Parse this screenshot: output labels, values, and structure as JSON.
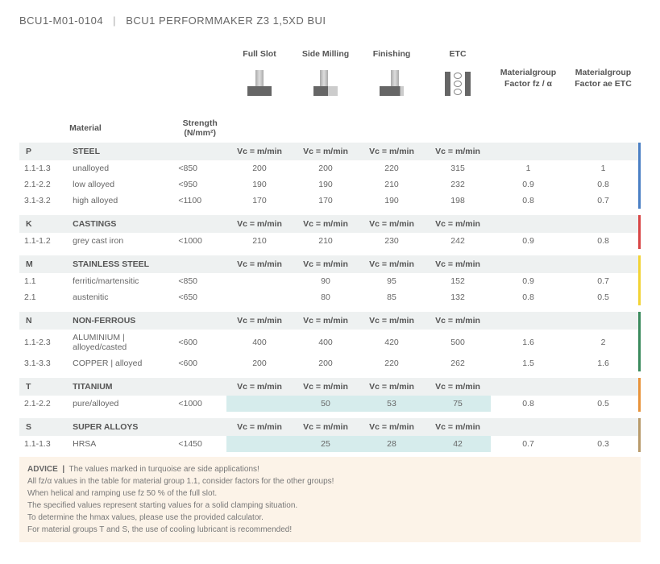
{
  "header": {
    "code": "BCU1-M01-0104",
    "sep": "|",
    "name": "BCU1 PERFORMMAKER Z3 1,5XD BUI"
  },
  "ops": [
    "Full Slot",
    "Side Milling",
    "Finishing",
    "ETC"
  ],
  "mg_labels": [
    "Materialgroup Factor fz / α",
    "Materialgroup Factor ae ETC"
  ],
  "labels": {
    "material": "Material",
    "strength": "Strength (N/mm²)"
  },
  "vc": "Vc = m/min",
  "groups": [
    {
      "code": "P",
      "name": "STEEL",
      "stripe": "c-p",
      "rows": [
        {
          "code": "1.1-1.3",
          "mat": "unalloyed",
          "str": "<850",
          "v": [
            "200",
            "200",
            "220",
            "315",
            "1",
            "1"
          ]
        },
        {
          "code": "2.1-2.2",
          "mat": "low alloyed",
          "str": "<950",
          "v": [
            "190",
            "190",
            "210",
            "232",
            "0.9",
            "0.8"
          ]
        },
        {
          "code": "3.1-3.2",
          "mat": "high alloyed",
          "str": "<1100",
          "v": [
            "170",
            "170",
            "190",
            "198",
            "0.8",
            "0.7"
          ]
        }
      ]
    },
    {
      "code": "K",
      "name": "CASTINGS",
      "stripe": "c-k",
      "rows": [
        {
          "code": "1.1-1.2",
          "mat": "grey cast iron",
          "str": "<1000",
          "v": [
            "210",
            "210",
            "230",
            "242",
            "0.9",
            "0.8"
          ]
        }
      ]
    },
    {
      "code": "M",
      "name": "STAINLESS STEEL",
      "stripe": "c-m",
      "rows": [
        {
          "code": "1.1",
          "mat": "ferritic/martensitic",
          "str": "<850",
          "v": [
            "",
            "90",
            "95",
            "152",
            "0.9",
            "0.7"
          ]
        },
        {
          "code": "2.1",
          "mat": "austenitic",
          "str": "<650",
          "v": [
            "",
            "80",
            "85",
            "132",
            "0.8",
            "0.5"
          ]
        }
      ]
    },
    {
      "code": "N",
      "name": "NON-FERROUS",
      "stripe": "c-n",
      "rows": [
        {
          "code": "1.1-2.3",
          "mat": "ALUMINIUM | alloyed/casted",
          "str": "<600",
          "v": [
            "400",
            "400",
            "420",
            "500",
            "1.6",
            "2"
          ]
        },
        {
          "code": "3.1-3.3",
          "mat": "COPPER | alloyed",
          "str": "<600",
          "v": [
            "200",
            "200",
            "220",
            "262",
            "1.5",
            "1.6"
          ]
        }
      ]
    },
    {
      "code": "T",
      "name": "TITANIUM",
      "stripe": "c-t",
      "turq": true,
      "rows": [
        {
          "code": "2.1-2.2",
          "mat": "pure/alloyed",
          "str": "<1000",
          "v": [
            "",
            "50",
            "53",
            "75",
            "0.8",
            "0.5"
          ]
        }
      ]
    },
    {
      "code": "S",
      "name": "SUPER ALLOYS",
      "stripe": "c-s",
      "turq": true,
      "rows": [
        {
          "code": "1.1-1.3",
          "mat": "HRSA",
          "str": "<1450",
          "v": [
            "",
            "25",
            "28",
            "42",
            "0.7",
            "0.3"
          ]
        }
      ]
    }
  ],
  "advice": {
    "label": "ADVICE",
    "lines": [
      "The values marked in turquoise are side applications!",
      "All fz/α values in the table for material group 1.1, consider factors for the other groups!",
      "When helical and ramping use fz 50 % of the full slot.",
      "The specified values represent starting values for a solid clamping situation.",
      "To determine the hmax values, please use the provided calculator.",
      "For material groups T and S, the use of cooling lubricant is recommended!"
    ]
  }
}
